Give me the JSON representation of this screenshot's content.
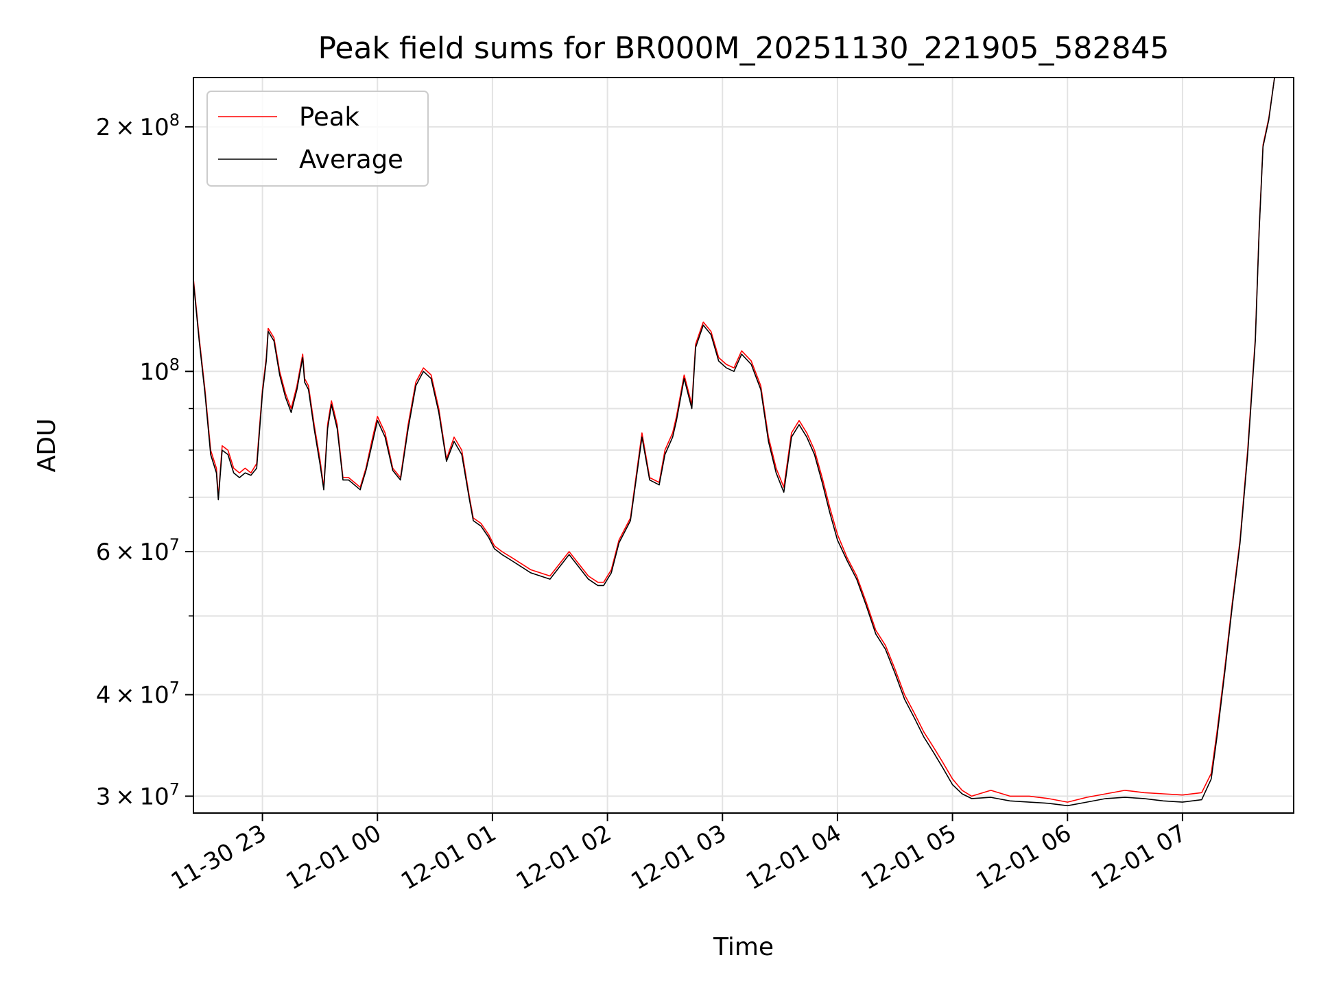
{
  "chart_data": {
    "type": "line",
    "title": "Peak field sums for BR000M_20251130_221905_582845",
    "xlabel": "Time",
    "ylabel": "ADU",
    "y_scale": "log",
    "ylim": [
      28600000,
      230000000
    ],
    "xlim": [
      "2025-11-30 22:24",
      "2025-12-01 07:58"
    ],
    "grid": true,
    "legend_position": "top-left",
    "x_ticks": [
      {
        "value": "2025-11-30 23:00",
        "label": "11-30 23"
      },
      {
        "value": "2025-12-01 00:00",
        "label": "12-01 00"
      },
      {
        "value": "2025-12-01 01:00",
        "label": "12-01 01"
      },
      {
        "value": "2025-12-01 02:00",
        "label": "12-01 02"
      },
      {
        "value": "2025-12-01 03:00",
        "label": "12-01 03"
      },
      {
        "value": "2025-12-01 04:00",
        "label": "12-01 04"
      },
      {
        "value": "2025-12-01 05:00",
        "label": "12-01 05"
      },
      {
        "value": "2025-12-01 06:00",
        "label": "12-01 06"
      },
      {
        "value": "2025-12-01 07:00",
        "label": "12-01 07"
      }
    ],
    "y_ticks": [
      {
        "value": 30000000,
        "label": "3 × 10^7"
      },
      {
        "value": 40000000,
        "label": "4 × 10^7"
      },
      {
        "value": 60000000,
        "label": "6 × 10^7"
      },
      {
        "value": 100000000,
        "label": "10^8"
      },
      {
        "value": 200000000,
        "label": "2 × 10^8"
      }
    ],
    "y_minor_grid": [
      50000000,
      70000000,
      80000000,
      90000000
    ],
    "series": [
      {
        "name": "Peak",
        "color": "#ff0000",
        "x": [
          "2025-11-30 22:24",
          "2025-11-30 22:27",
          "2025-11-30 22:30",
          "2025-11-30 22:33",
          "2025-11-30 22:36",
          "2025-11-30 22:37",
          "2025-11-30 22:39",
          "2025-11-30 22:42",
          "2025-11-30 22:45",
          "2025-11-30 22:48",
          "2025-11-30 22:51",
          "2025-11-30 22:54",
          "2025-11-30 22:57",
          "2025-11-30 23:00",
          "2025-11-30 23:02",
          "2025-11-30 23:03",
          "2025-11-30 23:06",
          "2025-11-30 23:09",
          "2025-11-30 23:12",
          "2025-11-30 23:15",
          "2025-11-30 23:18",
          "2025-11-30 23:21",
          "2025-11-30 23:22",
          "2025-11-30 23:24",
          "2025-11-30 23:27",
          "2025-11-30 23:30",
          "2025-11-30 23:32",
          "2025-11-30 23:34",
          "2025-11-30 23:36",
          "2025-11-30 23:39",
          "2025-11-30 23:42",
          "2025-11-30 23:45",
          "2025-11-30 23:48",
          "2025-11-30 23:51",
          "2025-11-30 23:54",
          "2025-11-30 23:57",
          "2025-12-01 00:00",
          "2025-12-01 00:04",
          "2025-12-01 00:08",
          "2025-12-01 00:12",
          "2025-12-01 00:16",
          "2025-12-01 00:20",
          "2025-12-01 00:24",
          "2025-12-01 00:28",
          "2025-12-01 00:32",
          "2025-12-01 00:36",
          "2025-12-01 00:40",
          "2025-12-01 00:44",
          "2025-12-01 00:48",
          "2025-12-01 00:50",
          "2025-12-01 00:54",
          "2025-12-01 00:58",
          "2025-12-01 01:01",
          "2025-12-01 01:05",
          "2025-12-01 01:10",
          "2025-12-01 01:15",
          "2025-12-01 01:20",
          "2025-12-01 01:30",
          "2025-12-01 01:40",
          "2025-12-01 01:50",
          "2025-12-01 01:55",
          "2025-12-01 01:58",
          "2025-12-01 02:02",
          "2025-12-01 02:06",
          "2025-12-01 02:12",
          "2025-12-01 02:18",
          "2025-12-01 02:22",
          "2025-12-01 02:27",
          "2025-12-01 02:30",
          "2025-12-01 02:34",
          "2025-12-01 02:36",
          "2025-12-01 02:40",
          "2025-12-01 02:44",
          "2025-12-01 02:46",
          "2025-12-01 02:50",
          "2025-12-01 02:54",
          "2025-12-01 02:58",
          "2025-12-01 03:02",
          "2025-12-01 03:06",
          "2025-12-01 03:10",
          "2025-12-01 03:15",
          "2025-12-01 03:20",
          "2025-12-01 03:24",
          "2025-12-01 03:28",
          "2025-12-01 03:32",
          "2025-12-01 03:36",
          "2025-12-01 03:40",
          "2025-12-01 03:44",
          "2025-12-01 03:48",
          "2025-12-01 03:52",
          "2025-12-01 03:56",
          "2025-12-01 04:00",
          "2025-12-01 04:05",
          "2025-12-01 04:10",
          "2025-12-01 04:15",
          "2025-12-01 04:20",
          "2025-12-01 04:25",
          "2025-12-01 04:30",
          "2025-12-01 04:35",
          "2025-12-01 04:40",
          "2025-12-01 04:45",
          "2025-12-01 04:50",
          "2025-12-01 04:55",
          "2025-12-01 05:00",
          "2025-12-01 05:05",
          "2025-12-01 05:10",
          "2025-12-01 05:20",
          "2025-12-01 05:30",
          "2025-12-01 05:40",
          "2025-12-01 05:50",
          "2025-12-01 06:00",
          "2025-12-01 06:10",
          "2025-12-01 06:20",
          "2025-12-01 06:30",
          "2025-12-01 06:40",
          "2025-12-01 06:50",
          "2025-12-01 07:00",
          "2025-12-01 07:10",
          "2025-12-01 07:15",
          "2025-12-01 07:18",
          "2025-12-01 07:22",
          "2025-12-01 07:26",
          "2025-12-01 07:30",
          "2025-12-01 07:34",
          "2025-12-01 07:38",
          "2025-12-01 07:40",
          "2025-12-01 07:42",
          "2025-12-01 07:45",
          "2025-12-01 07:48"
        ],
        "y": [
          130000000,
          110000000,
          95000000,
          80000000,
          76000000,
          70000000,
          81000000,
          80000000,
          76000000,
          75000000,
          76000000,
          75000000,
          77000000,
          95000000,
          104000000,
          113000000,
          110000000,
          100000000,
          94000000,
          90000000,
          96000000,
          105000000,
          98000000,
          96000000,
          86000000,
          78000000,
          72000000,
          86000000,
          92000000,
          86000000,
          74000000,
          74000000,
          73000000,
          72000000,
          76000000,
          82000000,
          88000000,
          84000000,
          76000000,
          74000000,
          86000000,
          97000000,
          101000000,
          99000000,
          90000000,
          78000000,
          83000000,
          80000000,
          70000000,
          66000000,
          65000000,
          63000000,
          61000000,
          60000000,
          59000000,
          58000000,
          57000000,
          56000000,
          60000000,
          56000000,
          55000000,
          55000000,
          57000000,
          62000000,
          66000000,
          84000000,
          74000000,
          73000000,
          80000000,
          84000000,
          88000000,
          99000000,
          91000000,
          108000000,
          115000000,
          112000000,
          104000000,
          102000000,
          101000000,
          106000000,
          103000000,
          96000000,
          83000000,
          76000000,
          72000000,
          84000000,
          87000000,
          84000000,
          80000000,
          74000000,
          68000000,
          63000000,
          59000000,
          56000000,
          52000000,
          48000000,
          46000000,
          43000000,
          40000000,
          38000000,
          36000000,
          34500000,
          33000000,
          31500000,
          30500000,
          30000000,
          30500000,
          30000000,
          30000000,
          29800000,
          29500000,
          29900000,
          30200000,
          30500000,
          30300000,
          30200000,
          30100000,
          30300000,
          32000000,
          36000000,
          43000000,
          52000000,
          62000000,
          80000000,
          110000000,
          150000000,
          190000000,
          205000000,
          230000000
        ]
      },
      {
        "name": "Average",
        "color": "#000000",
        "x": [
          "2025-11-30 22:24",
          "2025-11-30 22:27",
          "2025-11-30 22:30",
          "2025-11-30 22:33",
          "2025-11-30 22:36",
          "2025-11-30 22:37",
          "2025-11-30 22:39",
          "2025-11-30 22:42",
          "2025-11-30 22:45",
          "2025-11-30 22:48",
          "2025-11-30 22:51",
          "2025-11-30 22:54",
          "2025-11-30 22:57",
          "2025-11-30 23:00",
          "2025-11-30 23:02",
          "2025-11-30 23:03",
          "2025-11-30 23:06",
          "2025-11-30 23:09",
          "2025-11-30 23:12",
          "2025-11-30 23:15",
          "2025-11-30 23:18",
          "2025-11-30 23:21",
          "2025-11-30 23:22",
          "2025-11-30 23:24",
          "2025-11-30 23:27",
          "2025-11-30 23:30",
          "2025-11-30 23:32",
          "2025-11-30 23:34",
          "2025-11-30 23:36",
          "2025-11-30 23:39",
          "2025-11-30 23:42",
          "2025-11-30 23:45",
          "2025-11-30 23:48",
          "2025-11-30 23:51",
          "2025-11-30 23:54",
          "2025-11-30 23:57",
          "2025-12-01 00:00",
          "2025-12-01 00:04",
          "2025-12-01 00:08",
          "2025-12-01 00:12",
          "2025-12-01 00:16",
          "2025-12-01 00:20",
          "2025-12-01 00:24",
          "2025-12-01 00:28",
          "2025-12-01 00:32",
          "2025-12-01 00:36",
          "2025-12-01 00:40",
          "2025-12-01 00:44",
          "2025-12-01 00:48",
          "2025-12-01 00:50",
          "2025-12-01 00:54",
          "2025-12-01 00:58",
          "2025-12-01 01:01",
          "2025-12-01 01:05",
          "2025-12-01 01:10",
          "2025-12-01 01:15",
          "2025-12-01 01:20",
          "2025-12-01 01:30",
          "2025-12-01 01:40",
          "2025-12-01 01:50",
          "2025-12-01 01:55",
          "2025-12-01 01:58",
          "2025-12-01 02:02",
          "2025-12-01 02:06",
          "2025-12-01 02:12",
          "2025-12-01 02:18",
          "2025-12-01 02:22",
          "2025-12-01 02:27",
          "2025-12-01 02:30",
          "2025-12-01 02:34",
          "2025-12-01 02:36",
          "2025-12-01 02:40",
          "2025-12-01 02:44",
          "2025-12-01 02:46",
          "2025-12-01 02:50",
          "2025-12-01 02:54",
          "2025-12-01 02:58",
          "2025-12-01 03:02",
          "2025-12-01 03:06",
          "2025-12-01 03:10",
          "2025-12-01 03:15",
          "2025-12-01 03:20",
          "2025-12-01 03:24",
          "2025-12-01 03:28",
          "2025-12-01 03:32",
          "2025-12-01 03:36",
          "2025-12-01 03:40",
          "2025-12-01 03:44",
          "2025-12-01 03:48",
          "2025-12-01 03:52",
          "2025-12-01 03:56",
          "2025-12-01 04:00",
          "2025-12-01 04:05",
          "2025-12-01 04:10",
          "2025-12-01 04:15",
          "2025-12-01 04:20",
          "2025-12-01 04:25",
          "2025-12-01 04:30",
          "2025-12-01 04:35",
          "2025-12-01 04:40",
          "2025-12-01 04:45",
          "2025-12-01 04:50",
          "2025-12-01 04:55",
          "2025-12-01 05:00",
          "2025-12-01 05:05",
          "2025-12-01 05:10",
          "2025-12-01 05:20",
          "2025-12-01 05:30",
          "2025-12-01 05:40",
          "2025-12-01 05:50",
          "2025-12-01 06:00",
          "2025-12-01 06:10",
          "2025-12-01 06:20",
          "2025-12-01 06:30",
          "2025-12-01 06:40",
          "2025-12-01 06:50",
          "2025-12-01 07:00",
          "2025-12-01 07:10",
          "2025-12-01 07:15",
          "2025-12-01 07:18",
          "2025-12-01 07:22",
          "2025-12-01 07:26",
          "2025-12-01 07:30",
          "2025-12-01 07:34",
          "2025-12-01 07:38",
          "2025-12-01 07:40",
          "2025-12-01 07:42",
          "2025-12-01 07:45",
          "2025-12-01 07:48"
        ],
        "y": [
          129000000,
          109000000,
          94000000,
          79000000,
          75000000,
          69500000,
          80000000,
          79000000,
          75000000,
          74000000,
          75000000,
          74500000,
          76000000,
          94000000,
          103000000,
          112000000,
          109000000,
          99000000,
          93000000,
          89000000,
          95000000,
          104000000,
          97000000,
          95000000,
          85000000,
          77000000,
          71500000,
          85000000,
          91000000,
          85000000,
          73500000,
          73500000,
          72500000,
          71500000,
          75500000,
          81000000,
          87000000,
          83000000,
          75500000,
          73500000,
          85000000,
          96000000,
          100000000,
          98000000,
          89000000,
          77500000,
          82000000,
          79000000,
          69500000,
          65500000,
          64500000,
          62500000,
          60500000,
          59500000,
          58500000,
          57500000,
          56500000,
          55500000,
          59500000,
          55500000,
          54500000,
          54500000,
          56500000,
          61500000,
          65500000,
          83000000,
          73500000,
          72500000,
          79000000,
          83000000,
          87000000,
          98000000,
          90000000,
          107000000,
          114000000,
          111000000,
          103000000,
          101000000,
          100000000,
          105000000,
          102000000,
          95000000,
          82000000,
          75000000,
          71000000,
          83000000,
          86000000,
          83000000,
          79000000,
          73000000,
          67000000,
          62000000,
          58500000,
          55500000,
          51500000,
          47500000,
          45500000,
          42500000,
          39500000,
          37500000,
          35500000,
          34000000,
          32500000,
          31000000,
          30200000,
          29800000,
          29900000,
          29600000,
          29500000,
          29400000,
          29200000,
          29500000,
          29800000,
          29900000,
          29800000,
          29600000,
          29500000,
          29700000,
          31500000,
          35500000,
          42500000,
          51500000,
          61500000,
          79000000,
          109000000,
          149000000,
          189000000,
          204000000,
          230000000
        ]
      }
    ]
  }
}
